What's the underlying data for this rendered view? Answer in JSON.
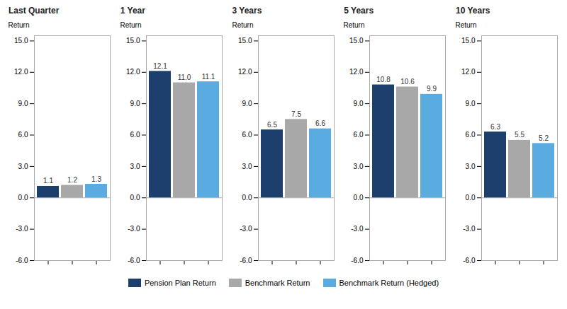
{
  "chart_data": [
    {
      "type": "bar",
      "title": "Last Quarter",
      "categories": [
        null
      ],
      "series": [
        {
          "name": "Pension Plan Return",
          "color": "#1c3f6e",
          "values": [
            1.1
          ],
          "value_labels": [
            "1.1"
          ]
        },
        {
          "name": "Benchmark Return",
          "color": "#a8a8a8",
          "values": [
            1.2
          ],
          "value_labels": [
            "1.2"
          ]
        },
        {
          "name": "Benchmark Return (Hedged)",
          "color": "#5aace0",
          "values": [
            1.3
          ],
          "value_labels": [
            "1.3"
          ]
        }
      ],
      "ylabel": "Return",
      "ylim": [
        -6.0,
        15.5
      ],
      "yticks": [
        {
          "value": -6.0,
          "label": "-6.0"
        },
        {
          "value": -3.0,
          "label": "-3.0"
        },
        {
          "value": 0.0,
          "label": "0.0"
        },
        {
          "value": 3.0,
          "label": "3.0"
        },
        {
          "value": 6.0,
          "label": "6.0"
        },
        {
          "value": 9.0,
          "label": "9.0"
        },
        {
          "value": 12.0,
          "label": "12.0"
        },
        {
          "value": 15.0,
          "label": "15.0"
        }
      ],
      "data_labels": true,
      "legend": "bottom"
    },
    {
      "type": "bar",
      "title": "1 Year",
      "categories": [
        null
      ],
      "series": [
        {
          "name": "Pension Plan Return",
          "color": "#1c3f6e",
          "values": [
            12.1
          ],
          "value_labels": [
            "12.1"
          ]
        },
        {
          "name": "Benchmark Return",
          "color": "#a8a8a8",
          "values": [
            11.0
          ],
          "value_labels": [
            "11.0"
          ]
        },
        {
          "name": "Benchmark Return (Hedged)",
          "color": "#5aace0",
          "values": [
            11.1
          ],
          "value_labels": [
            "11.1"
          ]
        }
      ],
      "ylabel": "Return",
      "ylim": [
        -6.0,
        15.5
      ],
      "yticks": [
        {
          "value": -6.0,
          "label": "-6.0"
        },
        {
          "value": -3.0,
          "label": "-3.0"
        },
        {
          "value": 0.0,
          "label": "0.0"
        },
        {
          "value": 3.0,
          "label": "3.0"
        },
        {
          "value": 6.0,
          "label": "6.0"
        },
        {
          "value": 9.0,
          "label": "9.0"
        },
        {
          "value": 12.0,
          "label": "12.0"
        },
        {
          "value": 15.0,
          "label": "15.0"
        }
      ],
      "data_labels": true,
      "legend": "bottom"
    },
    {
      "type": "bar",
      "title": "3 Years",
      "categories": [
        null
      ],
      "series": [
        {
          "name": "Pension Plan Return",
          "color": "#1c3f6e",
          "values": [
            6.5
          ],
          "value_labels": [
            "6.5"
          ]
        },
        {
          "name": "Benchmark Return",
          "color": "#a8a8a8",
          "values": [
            7.5
          ],
          "value_labels": [
            "7.5"
          ]
        },
        {
          "name": "Benchmark Return (Hedged)",
          "color": "#5aace0",
          "values": [
            6.6
          ],
          "value_labels": [
            "6.6"
          ]
        }
      ],
      "ylabel": "Return",
      "ylim": [
        -6.0,
        15.5
      ],
      "yticks": [
        {
          "value": -6.0,
          "label": "-6.0"
        },
        {
          "value": -3.0,
          "label": "-3.0"
        },
        {
          "value": 0.0,
          "label": "0.0"
        },
        {
          "value": 3.0,
          "label": "3.0"
        },
        {
          "value": 6.0,
          "label": "6.0"
        },
        {
          "value": 9.0,
          "label": "9.0"
        },
        {
          "value": 12.0,
          "label": "12.0"
        },
        {
          "value": 15.0,
          "label": "15.0"
        }
      ],
      "data_labels": true,
      "legend": "bottom"
    },
    {
      "type": "bar",
      "title": "5 Years",
      "categories": [
        null
      ],
      "series": [
        {
          "name": "Pension Plan Return",
          "color": "#1c3f6e",
          "values": [
            10.8
          ],
          "value_labels": [
            "10.8"
          ]
        },
        {
          "name": "Benchmark Return",
          "color": "#a8a8a8",
          "values": [
            10.6
          ],
          "value_labels": [
            "10.6"
          ]
        },
        {
          "name": "Benchmark Return (Hedged)",
          "color": "#5aace0",
          "values": [
            9.9
          ],
          "value_labels": [
            "9.9"
          ]
        }
      ],
      "ylabel": "Return",
      "ylim": [
        -6.0,
        15.5
      ],
      "yticks": [
        {
          "value": -6.0,
          "label": "-6.0"
        },
        {
          "value": -3.0,
          "label": "-3.0"
        },
        {
          "value": 0.0,
          "label": "0.0"
        },
        {
          "value": 3.0,
          "label": "3.0"
        },
        {
          "value": 6.0,
          "label": "6.0"
        },
        {
          "value": 9.0,
          "label": "9.0"
        },
        {
          "value": 12.0,
          "label": "12.0"
        },
        {
          "value": 15.0,
          "label": "15.0"
        }
      ],
      "data_labels": true,
      "legend": "bottom"
    },
    {
      "type": "bar",
      "title": "10 Years",
      "categories": [
        null
      ],
      "series": [
        {
          "name": "Pension Plan Return",
          "color": "#1c3f6e",
          "values": [
            6.3
          ],
          "value_labels": [
            "6.3"
          ]
        },
        {
          "name": "Benchmark Return",
          "color": "#a8a8a8",
          "values": [
            5.5
          ],
          "value_labels": [
            "5.5"
          ]
        },
        {
          "name": "Benchmark Return (Hedged)",
          "color": "#5aace0",
          "values": [
            5.2
          ],
          "value_labels": [
            "5.2"
          ]
        }
      ],
      "ylabel": "Return",
      "ylim": [
        -6.0,
        15.5
      ],
      "yticks": [
        {
          "value": -6.0,
          "label": "-6.0"
        },
        {
          "value": -3.0,
          "label": "-3.0"
        },
        {
          "value": 0.0,
          "label": "0.0"
        },
        {
          "value": 3.0,
          "label": "3.0"
        },
        {
          "value": 6.0,
          "label": "6.0"
        },
        {
          "value": 9.0,
          "label": "9.0"
        },
        {
          "value": 12.0,
          "label": "12.0"
        },
        {
          "value": 15.0,
          "label": "15.0"
        }
      ],
      "data_labels": true,
      "legend": "bottom"
    }
  ]
}
